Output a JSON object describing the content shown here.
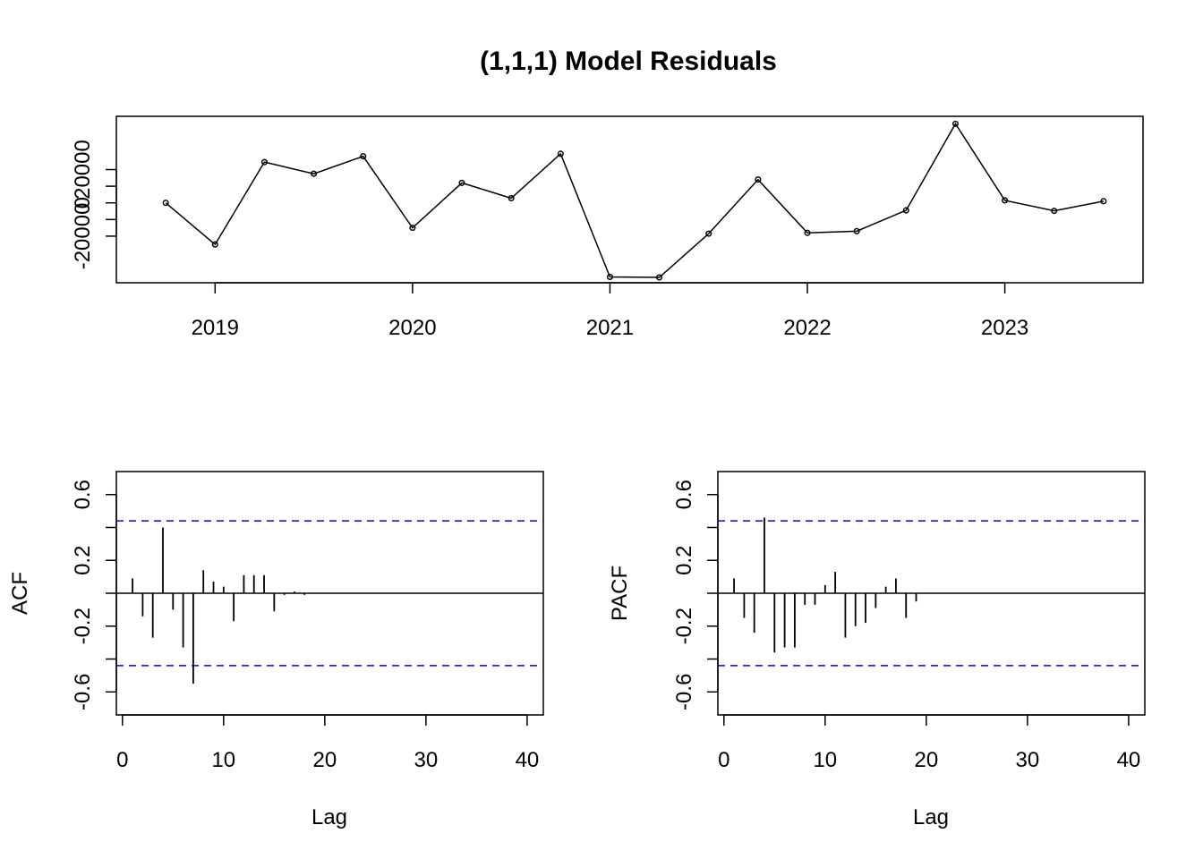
{
  "chart_data": [
    {
      "type": "line",
      "title": "(1,1,1) Model Residuals",
      "xlabel": "",
      "ylabel": "",
      "x": [
        2018.75,
        2019.0,
        2019.25,
        2019.5,
        2019.75,
        2020.0,
        2020.25,
        2020.5,
        2020.75,
        2021.0,
        2021.25,
        2021.5,
        2021.75,
        2022.0,
        2022.25,
        2022.5,
        2022.75,
        2023.0,
        2023.25,
        2023.5
      ],
      "values": [
        0,
        -25000,
        24500,
        17500,
        28000,
        -15000,
        12000,
        2800,
        29500,
        -44500,
        -44800,
        -18500,
        14000,
        -18000,
        -17000,
        -4500,
        47500,
        1500,
        -4800,
        1000
      ],
      "xlim": [
        2018.5,
        2023.7
      ],
      "ylim": [
        -48000,
        52000
      ],
      "xticks": [
        2019,
        2020,
        2021,
        2022,
        2023
      ],
      "xtick_labels": [
        "2019",
        "2020",
        "2021",
        "2022",
        "2023"
      ],
      "yticks": [
        -40000,
        -20000,
        0,
        20000,
        40000
      ],
      "ytick_labels": [
        "-20000",
        "0",
        "20000"
      ],
      "grid": false,
      "legend": "none",
      "color": "#000000"
    },
    {
      "type": "bar",
      "title": "",
      "xlabel": "Lag",
      "ylabel": "ACF",
      "x": [
        1,
        2,
        3,
        4,
        5,
        6,
        7,
        8,
        9,
        10,
        11,
        12,
        13,
        14,
        15,
        16,
        17,
        18
      ],
      "values": [
        0.09,
        -0.14,
        -0.27,
        0.4,
        -0.1,
        -0.33,
        -0.55,
        0.14,
        0.07,
        0.04,
        -0.17,
        0.11,
        0.11,
        0.11,
        -0.11,
        -0.01,
        0.01,
        -0.01
      ],
      "conf_bound": 0.44,
      "xlim": [
        -0.6,
        41.6
      ],
      "ylim": [
        -0.74,
        0.74
      ],
      "xticks": [
        0,
        10,
        20,
        30,
        40
      ],
      "xtick_labels": [
        "0",
        "10",
        "20",
        "30",
        "40"
      ],
      "yticks": [
        -0.6,
        -0.4,
        -0.2,
        0,
        0.2,
        0.4,
        0.6
      ],
      "ytick_labels": [
        "-0.6",
        "-0.2",
        "0.2",
        "0.6"
      ],
      "grid": false,
      "legend": "none",
      "bound_color": "#0000ff"
    },
    {
      "type": "bar",
      "title": "",
      "xlabel": "Lag",
      "ylabel": "PACF",
      "x": [
        1,
        2,
        3,
        4,
        5,
        6,
        7,
        8,
        9,
        10,
        11,
        12,
        13,
        14,
        15,
        16,
        17,
        18,
        19
      ],
      "values": [
        0.09,
        -0.15,
        -0.24,
        0.46,
        -0.36,
        -0.33,
        -0.33,
        -0.07,
        -0.07,
        0.05,
        0.13,
        -0.27,
        -0.2,
        -0.18,
        -0.09,
        0.04,
        0.09,
        -0.15,
        -0.05
      ],
      "conf_bound": 0.44,
      "xlim": [
        -0.6,
        41.6
      ],
      "ylim": [
        -0.74,
        0.74
      ],
      "xticks": [
        0,
        10,
        20,
        30,
        40
      ],
      "xtick_labels": [
        "0",
        "10",
        "20",
        "30",
        "40"
      ],
      "yticks": [
        -0.6,
        -0.4,
        -0.2,
        0,
        0.2,
        0.4,
        0.6
      ],
      "ytick_labels": [
        "-0.6",
        "-0.2",
        "0.2",
        "0.6"
      ],
      "grid": false,
      "legend": "none",
      "bound_color": "#0000ff"
    }
  ]
}
